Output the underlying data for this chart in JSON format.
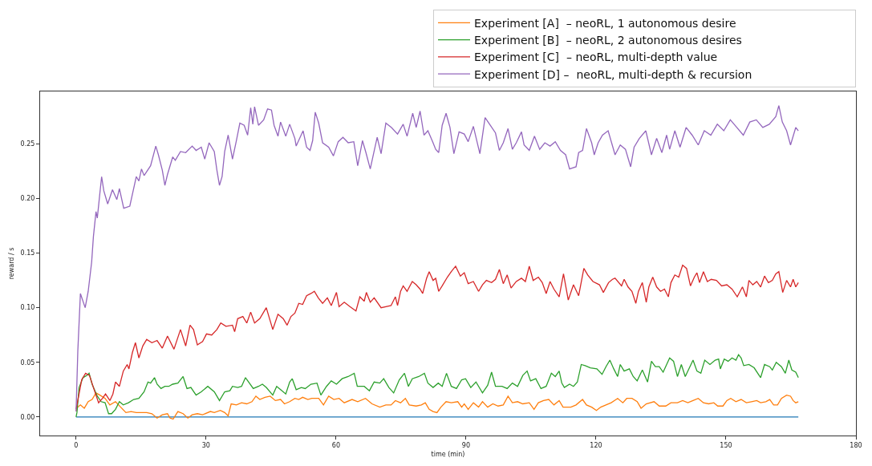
{
  "chart_data": {
    "type": "line",
    "xlabel": "time (min)",
    "ylabel": "reward / s",
    "xlim": [
      -8.3,
      180
    ],
    "xticks": [
      0,
      30,
      60,
      90,
      120,
      150,
      180
    ],
    "ylim": [
      -0.017,
      0.298
    ],
    "yticks": [
      {
        "value": 0,
        "label": "0.00"
      },
      0.05,
      {
        "value": 0.1,
        "label": "0.10"
      },
      0.15,
      {
        "value": 0.2,
        "label": "0.20"
      },
      0.25
    ],
    "grid": false,
    "legend": "top right",
    "series": [
      {
        "color": "#1f77b4",
        "x": [
          0,
          166.7
        ],
        "values": [
          0,
          0
        ]
      },
      {
        "name": "Experiment [A]  – neoRL, 1 autonomous desire",
        "color": "#ff7f0e",
        "x": [
          0,
          0.4,
          1.0,
          1.9,
          2.8,
          3.7,
          4.6,
          5.5,
          6.7,
          7.8,
          9.1,
          10.3,
          11.5,
          12.7,
          13.9,
          15.1,
          16.3,
          17.5,
          18.7,
          19.9,
          21.1,
          21.7,
          22.4,
          23.5,
          24.7,
          25.8,
          26.8,
          28.0,
          29.2,
          31.0,
          31.9,
          33.3,
          34.3,
          35.1,
          35.8,
          37.0,
          38.2,
          39.4,
          40.6,
          41.5,
          42.4,
          43.6,
          44.8,
          46.0,
          47.2,
          48.1,
          49.3,
          50.5,
          51.4,
          52.3,
          53.5,
          54.4,
          56.0,
          57.1,
          58.3,
          59.5,
          60.7,
          61.9,
          63.7,
          65.0,
          66.8,
          68.3,
          70.1,
          71.5,
          72.7,
          73.7,
          74.9,
          76.0,
          76.9,
          78.5,
          79.7,
          80.6,
          81.5,
          82.4,
          83.3,
          84.2,
          85.4,
          86.6,
          88.1,
          89.0,
          89.6,
          90.5,
          91.7,
          92.9,
          93.8,
          95.0,
          96.2,
          97.4,
          98.6,
          99.7,
          100.7,
          101.9,
          103.1,
          104.6,
          105.7,
          106.7,
          107.9,
          109.1,
          110.3,
          111.5,
          112.4,
          114.2,
          115.4,
          116.9,
          117.8,
          119.0,
          120.1,
          121.1,
          122.3,
          123.5,
          125.0,
          126.2,
          127.1,
          128.3,
          129.5,
          130.4,
          131.6,
          133.4,
          134.6,
          136.1,
          137.3,
          138.8,
          140.0,
          141.2,
          142.4,
          143.6,
          144.8,
          146.0,
          147.2,
          148.1,
          149.3,
          150.2,
          151.1,
          152.3,
          153.5,
          154.7,
          155.9,
          157.1,
          158.0,
          159.2,
          160.1,
          161.0,
          161.9,
          162.8,
          164.0,
          164.9,
          165.5,
          166.1,
          166.7
        ],
        "values": [
          0.005,
          0.009,
          0.011,
          0.008,
          0.014,
          0.016,
          0.022,
          0.02,
          0.017,
          0.011,
          0.014,
          0.009,
          0.004,
          0.005,
          0.004,
          0.004,
          0.004,
          0.003,
          -0.001,
          0.002,
          0.003,
          -0.001,
          -0.002,
          0.005,
          0.003,
          -0.001,
          0.002,
          0.003,
          0.002,
          0.005,
          0.004,
          0.006,
          0.004,
          0.001,
          0.012,
          0.011,
          0.013,
          0.012,
          0.014,
          0.019,
          0.016,
          0.018,
          0.019,
          0.015,
          0.016,
          0.012,
          0.014,
          0.017,
          0.016,
          0.018,
          0.016,
          0.017,
          0.017,
          0.011,
          0.019,
          0.016,
          0.017,
          0.013,
          0.016,
          0.014,
          0.017,
          0.012,
          0.009,
          0.011,
          0.011,
          0.015,
          0.013,
          0.017,
          0.011,
          0.01,
          0.011,
          0.013,
          0.007,
          0.005,
          0.004,
          0.009,
          0.014,
          0.013,
          0.014,
          0.009,
          0.012,
          0.007,
          0.013,
          0.009,
          0.014,
          0.009,
          0.012,
          0.01,
          0.011,
          0.019,
          0.013,
          0.014,
          0.012,
          0.013,
          0.007,
          0.013,
          0.015,
          0.016,
          0.011,
          0.015,
          0.009,
          0.009,
          0.011,
          0.016,
          0.011,
          0.009,
          0.006,
          0.009,
          0.011,
          0.013,
          0.017,
          0.013,
          0.017,
          0.017,
          0.014,
          0.008,
          0.012,
          0.014,
          0.01,
          0.01,
          0.013,
          0.013,
          0.015,
          0.013,
          0.015,
          0.017,
          0.013,
          0.012,
          0.013,
          0.01,
          0.01,
          0.015,
          0.017,
          0.014,
          0.016,
          0.013,
          0.014,
          0.015,
          0.013,
          0.014,
          0.016,
          0.011,
          0.011,
          0.017,
          0.02,
          0.019,
          0.015,
          0.013,
          0.014
        ]
      },
      {
        "name": "Experiment [B]  – neoRL, 2 autonomous desires",
        "color": "#2ca02c",
        "x": [
          0,
          0.2,
          0.7,
          1.6,
          2.5,
          3.0,
          3.7,
          4.9,
          5.8,
          6.7,
          7.5,
          8.2,
          9.1,
          10.0,
          10.9,
          12.1,
          13.3,
          14.5,
          15.7,
          16.6,
          17.2,
          18.1,
          18.7,
          19.6,
          20.5,
          21.4,
          22.3,
          23.5,
          24.7,
          25.6,
          26.5,
          27.7,
          28.9,
          30.4,
          31.9,
          33.1,
          34.3,
          35.5,
          36.1,
          37.3,
          38.2,
          39.1,
          40.0,
          40.9,
          42.1,
          43.0,
          43.9,
          45.4,
          46.3,
          47.2,
          48.4,
          49.3,
          49.9,
          50.8,
          52.0,
          52.9,
          54.2,
          55.6,
          56.5,
          57.8,
          58.9,
          60.1,
          61.4,
          62.8,
          64.2,
          64.9,
          66.5,
          67.7,
          68.8,
          70.1,
          71.0,
          72.2,
          73.3,
          74.6,
          75.8,
          76.7,
          77.6,
          79.1,
          80.4,
          81.2,
          82.4,
          83.6,
          84.5,
          85.5,
          86.6,
          87.8,
          89.0,
          89.9,
          91.1,
          92.3,
          93.8,
          95.0,
          95.9,
          96.8,
          98.3,
          99.5,
          100.7,
          101.9,
          103.1,
          104.1,
          104.9,
          106.1,
          107.3,
          108.5,
          109.7,
          110.6,
          111.5,
          112.1,
          112.7,
          113.9,
          114.8,
          115.7,
          116.6,
          117.5,
          118.7,
          120.2,
          121.4,
          122.3,
          123.2,
          124.1,
          125.0,
          125.6,
          126.5,
          127.7,
          128.6,
          129.5,
          130.7,
          131.9,
          132.8,
          133.7,
          134.6,
          135.5,
          137.0,
          137.9,
          138.8,
          139.7,
          140.6,
          142.4,
          143.3,
          144.2,
          145.1,
          146.3,
          147.5,
          148.3,
          148.7,
          149.6,
          150.5,
          151.4,
          152.3,
          152.9,
          153.5,
          154.1,
          155.3,
          156.5,
          158.0,
          158.9,
          160.1,
          160.7,
          161.6,
          162.8,
          163.7,
          164.5,
          165.2,
          166.1,
          166.7
        ],
        "values": [
          0.0,
          0.004,
          0.027,
          0.036,
          0.038,
          0.04,
          0.03,
          0.019,
          0.014,
          0.013,
          0.003,
          0.003,
          0.007,
          0.014,
          0.011,
          0.013,
          0.016,
          0.017,
          0.023,
          0.032,
          0.031,
          0.036,
          0.03,
          0.026,
          0.028,
          0.028,
          0.03,
          0.031,
          0.037,
          0.026,
          0.027,
          0.02,
          0.023,
          0.028,
          0.023,
          0.015,
          0.023,
          0.024,
          0.028,
          0.027,
          0.028,
          0.036,
          0.031,
          0.026,
          0.028,
          0.03,
          0.027,
          0.02,
          0.028,
          0.025,
          0.021,
          0.032,
          0.035,
          0.025,
          0.027,
          0.026,
          0.03,
          0.031,
          0.02,
          0.028,
          0.033,
          0.03,
          0.035,
          0.037,
          0.04,
          0.028,
          0.028,
          0.024,
          0.032,
          0.031,
          0.035,
          0.027,
          0.022,
          0.034,
          0.04,
          0.028,
          0.035,
          0.037,
          0.04,
          0.031,
          0.027,
          0.031,
          0.028,
          0.04,
          0.028,
          0.026,
          0.034,
          0.035,
          0.027,
          0.032,
          0.022,
          0.029,
          0.041,
          0.028,
          0.028,
          0.026,
          0.031,
          0.028,
          0.038,
          0.042,
          0.033,
          0.035,
          0.026,
          0.028,
          0.04,
          0.037,
          0.042,
          0.031,
          0.027,
          0.03,
          0.028,
          0.032,
          0.048,
          0.047,
          0.045,
          0.044,
          0.039,
          0.046,
          0.052,
          0.044,
          0.037,
          0.048,
          0.042,
          0.044,
          0.037,
          0.033,
          0.043,
          0.032,
          0.051,
          0.046,
          0.046,
          0.041,
          0.054,
          0.051,
          0.037,
          0.048,
          0.037,
          0.052,
          0.042,
          0.04,
          0.052,
          0.048,
          0.052,
          0.053,
          0.044,
          0.053,
          0.051,
          0.054,
          0.052,
          0.057,
          0.054,
          0.047,
          0.048,
          0.045,
          0.036,
          0.048,
          0.046,
          0.043,
          0.05,
          0.046,
          0.04,
          0.052,
          0.043,
          0.041,
          0.036
        ]
      },
      {
        "name": "Experiment [C]  – neoRL, multi-depth value",
        "color": "#d62728",
        "x": [
          0,
          0.4,
          1.3,
          2.2,
          3.1,
          4.0,
          5.2,
          6.1,
          6.8,
          7.8,
          8.5,
          9.1,
          10.0,
          10.9,
          11.8,
          12.2,
          13.0,
          13.7,
          14.5,
          15.4,
          16.3,
          17.5,
          18.7,
          19.9,
          21.1,
          22.6,
          24.1,
          25.3,
          26.3,
          27.1,
          28.0,
          29.2,
          30.1,
          31.3,
          32.5,
          33.4,
          34.6,
          36.1,
          36.6,
          37.3,
          38.5,
          39.4,
          40.3,
          41.2,
          42.4,
          43.9,
          45.4,
          46.6,
          47.8,
          48.7,
          49.6,
          50.5,
          51.4,
          52.3,
          53.2,
          54.2,
          55.0,
          55.9,
          56.9,
          58.0,
          58.9,
          60.1,
          60.7,
          61.9,
          63.2,
          64.6,
          65.5,
          66.5,
          67.0,
          67.9,
          68.8,
          70.4,
          71.5,
          72.7,
          73.7,
          74.2,
          74.9,
          75.5,
          76.4,
          77.6,
          78.5,
          79.4,
          80.0,
          80.9,
          81.5,
          82.4,
          83.0,
          83.7,
          84.5,
          85.7,
          86.6,
          87.6,
          88.7,
          89.6,
          90.5,
          91.7,
          92.9,
          93.8,
          94.7,
          95.9,
          96.8,
          97.7,
          98.6,
          99.5,
          100.4,
          101.6,
          102.8,
          103.7,
          104.6,
          105.5,
          106.7,
          107.6,
          108.5,
          109.4,
          110.3,
          111.5,
          112.5,
          113.6,
          114.8,
          116.0,
          117.2,
          118.1,
          119.3,
          120.8,
          121.7,
          122.9,
          123.8,
          124.4,
          125.9,
          126.5,
          127.4,
          128.3,
          129.2,
          129.8,
          130.7,
          131.6,
          132.2,
          133.1,
          134.0,
          134.9,
          135.8,
          136.7,
          137.3,
          138.2,
          139.1,
          140.0,
          140.9,
          141.8,
          142.7,
          143.3,
          143.9,
          144.8,
          145.7,
          146.6,
          147.8,
          149.0,
          150.2,
          151.4,
          152.6,
          153.8,
          154.7,
          155.3,
          156.2,
          157.1,
          158.0,
          158.9,
          159.8,
          160.7,
          161.5,
          162.2,
          163.1,
          164.0,
          164.9,
          165.5,
          166.1,
          166.7
        ],
        "values": [
          0.007,
          0.015,
          0.034,
          0.04,
          0.038,
          0.027,
          0.013,
          0.017,
          0.021,
          0.015,
          0.021,
          0.032,
          0.028,
          0.042,
          0.048,
          0.044,
          0.059,
          0.068,
          0.054,
          0.065,
          0.071,
          0.068,
          0.07,
          0.063,
          0.074,
          0.062,
          0.08,
          0.065,
          0.084,
          0.08,
          0.066,
          0.069,
          0.076,
          0.075,
          0.08,
          0.086,
          0.083,
          0.084,
          0.078,
          0.09,
          0.092,
          0.086,
          0.096,
          0.086,
          0.09,
          0.1,
          0.08,
          0.094,
          0.09,
          0.084,
          0.092,
          0.095,
          0.104,
          0.103,
          0.111,
          0.113,
          0.115,
          0.109,
          0.104,
          0.109,
          0.102,
          0.114,
          0.101,
          0.105,
          0.101,
          0.097,
          0.11,
          0.106,
          0.114,
          0.105,
          0.109,
          0.1,
          0.101,
          0.102,
          0.11,
          0.102,
          0.115,
          0.12,
          0.115,
          0.124,
          0.121,
          0.117,
          0.113,
          0.127,
          0.133,
          0.125,
          0.127,
          0.115,
          0.12,
          0.128,
          0.133,
          0.138,
          0.129,
          0.132,
          0.122,
          0.124,
          0.115,
          0.121,
          0.125,
          0.123,
          0.126,
          0.135,
          0.122,
          0.13,
          0.118,
          0.124,
          0.127,
          0.124,
          0.138,
          0.125,
          0.128,
          0.123,
          0.113,
          0.124,
          0.117,
          0.11,
          0.131,
          0.107,
          0.121,
          0.111,
          0.136,
          0.13,
          0.124,
          0.121,
          0.114,
          0.123,
          0.126,
          0.127,
          0.12,
          0.126,
          0.119,
          0.115,
          0.104,
          0.115,
          0.123,
          0.105,
          0.119,
          0.128,
          0.119,
          0.115,
          0.117,
          0.11,
          0.123,
          0.13,
          0.128,
          0.139,
          0.136,
          0.12,
          0.128,
          0.132,
          0.123,
          0.133,
          0.124,
          0.126,
          0.125,
          0.12,
          0.121,
          0.117,
          0.11,
          0.119,
          0.11,
          0.125,
          0.121,
          0.124,
          0.119,
          0.129,
          0.123,
          0.125,
          0.131,
          0.133,
          0.114,
          0.125,
          0.119,
          0.126,
          0.119,
          0.123
        ]
      },
      {
        "name": "Experiment [D] –  neoRL, multi-depth & recursion",
        "color": "#9467bd",
        "x": [
          0,
          0.4,
          1.0,
          2.1,
          2.8,
          3.6,
          4.0,
          4.6,
          4.9,
          5.5,
          5.9,
          6.4,
          7.3,
          8.4,
          9.4,
          10.0,
          11.0,
          12.4,
          13.9,
          14.5,
          15.1,
          15.7,
          17.2,
          18.4,
          19.0,
          19.9,
          20.5,
          21.1,
          22.3,
          22.9,
          24.1,
          25.3,
          26.8,
          27.7,
          28.9,
          29.7,
          30.7,
          31.9,
          32.5,
          33.1,
          33.7,
          34.3,
          35.1,
          36.1,
          37.0,
          37.8,
          38.8,
          39.6,
          40.3,
          40.8,
          41.2,
          42.1,
          43.3,
          44.2,
          45.1,
          45.7,
          46.6,
          47.2,
          48.4,
          49.3,
          50.5,
          50.8,
          52.4,
          53.2,
          54.0,
          54.6,
          55.2,
          56.0,
          56.9,
          58.3,
          59.4,
          60.5,
          61.6,
          62.8,
          64.1,
          65.0,
          66.1,
          66.9,
          67.9,
          68.5,
          69.5,
          70.4,
          71.5,
          72.8,
          74.2,
          75.5,
          76.4,
          77.7,
          78.5,
          79.4,
          80.3,
          81.2,
          82.3,
          83.0,
          83.7,
          84.5,
          85.4,
          86.3,
          87.2,
          88.4,
          89.6,
          90.5,
          91.7,
          93.2,
          94.4,
          95.6,
          96.8,
          97.7,
          98.6,
          99.7,
          100.7,
          101.6,
          102.8,
          103.4,
          104.6,
          105.8,
          107.0,
          108.2,
          109.4,
          110.6,
          111.8,
          113.0,
          113.9,
          115.4,
          116.0,
          116.9,
          117.8,
          119.0,
          119.6,
          120.5,
          121.5,
          122.8,
          124.4,
          125.6,
          126.8,
          128.0,
          128.8,
          130.0,
          131.5,
          132.8,
          134.0,
          135.2,
          136.3,
          137.0,
          138.2,
          139.4,
          140.8,
          142.2,
          143.6,
          145.0,
          146.5,
          148.0,
          149.5,
          151.0,
          152.5,
          154.0,
          155.5,
          157.0,
          158.5,
          160.0,
          161.5,
          162.2,
          163.0,
          164.0,
          164.9,
          166.1,
          166.7
        ],
        "values": [
          0.005,
          0.06,
          0.113,
          0.1,
          0.115,
          0.142,
          0.165,
          0.188,
          0.182,
          0.205,
          0.22,
          0.207,
          0.195,
          0.208,
          0.199,
          0.209,
          0.191,
          0.193,
          0.22,
          0.216,
          0.227,
          0.221,
          0.23,
          0.248,
          0.24,
          0.226,
          0.212,
          0.222,
          0.238,
          0.235,
          0.243,
          0.242,
          0.248,
          0.244,
          0.247,
          0.236,
          0.251,
          0.243,
          0.226,
          0.212,
          0.22,
          0.243,
          0.258,
          0.236,
          0.253,
          0.269,
          0.267,
          0.258,
          0.283,
          0.268,
          0.284,
          0.267,
          0.272,
          0.282,
          0.281,
          0.267,
          0.257,
          0.27,
          0.257,
          0.268,
          0.255,
          0.248,
          0.262,
          0.247,
          0.244,
          0.253,
          0.279,
          0.269,
          0.251,
          0.247,
          0.239,
          0.252,
          0.256,
          0.251,
          0.252,
          0.23,
          0.253,
          0.242,
          0.227,
          0.238,
          0.256,
          0.241,
          0.269,
          0.265,
          0.259,
          0.268,
          0.257,
          0.278,
          0.265,
          0.28,
          0.258,
          0.262,
          0.252,
          0.245,
          0.242,
          0.267,
          0.278,
          0.265,
          0.241,
          0.261,
          0.259,
          0.252,
          0.266,
          0.241,
          0.274,
          0.267,
          0.26,
          0.244,
          0.251,
          0.264,
          0.245,
          0.251,
          0.261,
          0.249,
          0.244,
          0.257,
          0.245,
          0.251,
          0.248,
          0.252,
          0.244,
          0.24,
          0.227,
          0.229,
          0.242,
          0.244,
          0.264,
          0.251,
          0.24,
          0.251,
          0.258,
          0.262,
          0.24,
          0.249,
          0.245,
          0.229,
          0.247,
          0.255,
          0.262,
          0.24,
          0.255,
          0.242,
          0.258,
          0.245,
          0.262,
          0.247,
          0.265,
          0.258,
          0.249,
          0.262,
          0.258,
          0.268,
          0.262,
          0.272,
          0.265,
          0.258,
          0.27,
          0.272,
          0.265,
          0.268,
          0.275,
          0.285,
          0.27,
          0.262,
          0.249,
          0.265,
          0.262
        ]
      }
    ]
  }
}
